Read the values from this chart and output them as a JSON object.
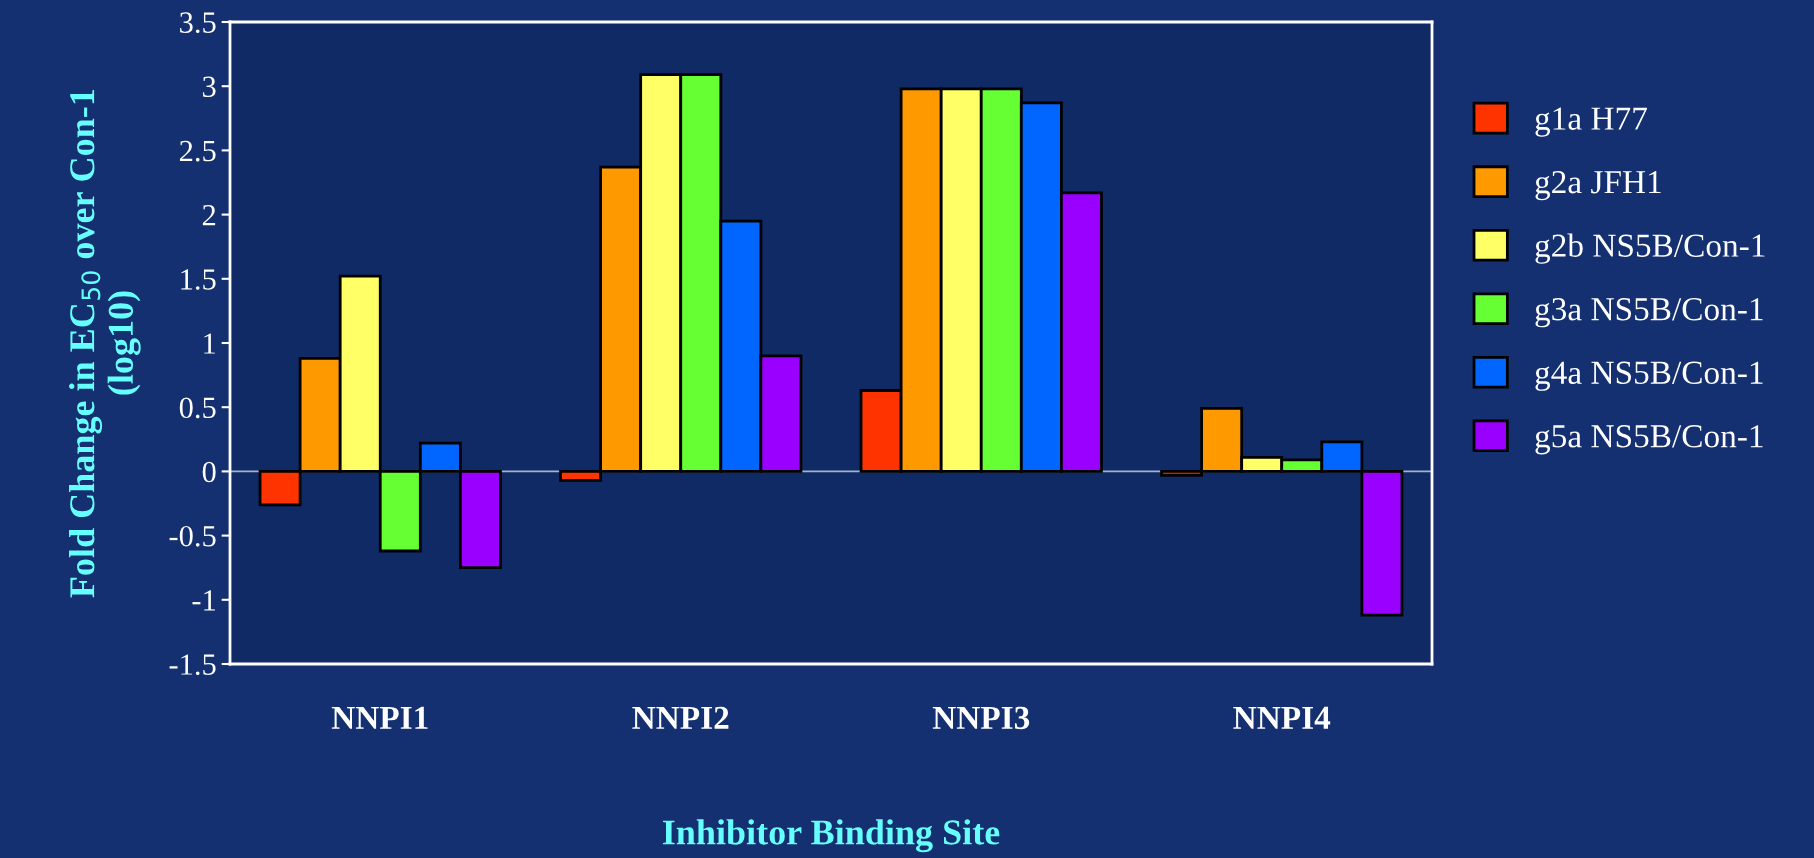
{
  "chart_data": {
    "type": "bar",
    "xlabel": "Inhibitor Binding Site",
    "ylabel": "Fold Change in EC$_{50}$ over Con-1\n(log10)",
    "categories": [
      "NNPI1",
      "NNPI2",
      "NNPI3",
      "NNPI4"
    ],
    "series": [
      {
        "name": "g1a H77",
        "color": "#ff3300",
        "values": [
          -0.26,
          -0.07,
          0.63,
          -0.03
        ]
      },
      {
        "name": "g2a JFH1",
        "color": "#ff9900",
        "values": [
          0.88,
          2.37,
          2.98,
          0.49
        ]
      },
      {
        "name": "g2b NS5B/Con-1",
        "color": "#ffff66",
        "values": [
          1.52,
          3.09,
          2.98,
          0.11
        ]
      },
      {
        "name": "g3a NS5B/Con-1",
        "color": "#66ff33",
        "values": [
          -0.62,
          3.09,
          2.98,
          0.09
        ]
      },
      {
        "name": "g4a NS5B/Con-1",
        "color": "#0066ff",
        "values": [
          0.22,
          1.95,
          2.87,
          0.23
        ]
      },
      {
        "name": "g5a NS5B/Con-1",
        "color": "#9900ff",
        "values": [
          -0.75,
          0.9,
          2.17,
          -1.12
        ]
      }
    ],
    "ylim": [
      -1.5,
      3.5
    ],
    "yticks": [
      -1.5,
      -1,
      -0.5,
      0,
      0.5,
      1,
      1.5,
      2,
      2.5,
      3,
      3.5
    ],
    "ref_lines": [
      {
        "axis": "y",
        "value": 0,
        "color": "#a0b4d0"
      }
    ],
    "legend": "right",
    "grid": false
  }
}
